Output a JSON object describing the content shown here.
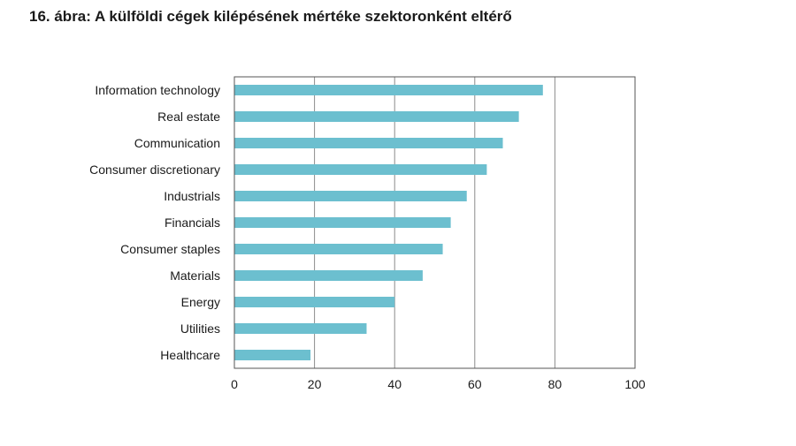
{
  "page": {
    "title": "16. ábra: A külföldi cégek kilépésének mértéke szektoronként eltérő"
  },
  "chart_data": {
    "type": "bar",
    "orientation": "horizontal",
    "title": "16. ábra: A külföldi cégek kilépésének mértéke szektoronként eltérő",
    "xlabel": "",
    "ylabel": "",
    "categories": [
      "Information technology",
      "Real estate",
      "Communication",
      "Consumer discretionary",
      "Industrials",
      "Financials",
      "Consumer staples",
      "Materials",
      "Energy",
      "Utilities",
      "Healthcare"
    ],
    "values": [
      77,
      71,
      67,
      63,
      58,
      54,
      52,
      47,
      40,
      33,
      19
    ],
    "xlim": [
      0,
      100
    ],
    "xticks": [
      0,
      20,
      40,
      60,
      80,
      100
    ],
    "grid": "vertical",
    "bar_color": "#6cbfcf",
    "legend": "none"
  }
}
